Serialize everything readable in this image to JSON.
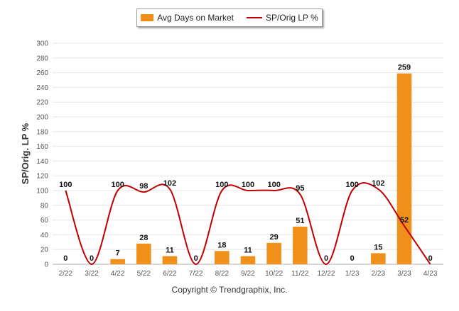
{
  "chart_data": {
    "type": "bar",
    "categories": [
      "2/22",
      "3/22",
      "4/22",
      "5/22",
      "6/22",
      "7/22",
      "8/22",
      "9/22",
      "10/22",
      "11/22",
      "12/22",
      "1/23",
      "2/23",
      "3/23",
      "4/23"
    ],
    "series": [
      {
        "name": "Avg Days on Market",
        "type": "bar",
        "color": "#f0901b",
        "values": [
          0,
          0,
          7,
          28,
          11,
          0,
          18,
          11,
          29,
          51,
          0,
          0,
          15,
          259,
          0
        ]
      },
      {
        "name": "SP/Orig LP %",
        "type": "line",
        "color": "#c00000",
        "values": [
          100,
          0,
          100,
          98,
          102,
          0,
          100,
          100,
          100,
          95,
          0,
          100,
          102,
          52,
          0
        ]
      }
    ],
    "bar_labels": [
      "0",
      "0",
      "7",
      "28",
      "11",
      "0",
      "18",
      "11",
      "29",
      "51",
      "0",
      "0",
      "15",
      "259",
      "0"
    ],
    "line_labels": [
      "100",
      "",
      "100",
      "98",
      "102",
      "",
      "100",
      "100",
      "100",
      "95",
      "",
      "100",
      "102",
      "52",
      ""
    ],
    "ylabel": "SP/Orig. LP %",
    "ylim": [
      0,
      300
    ],
    "yticks": [
      0,
      20,
      40,
      60,
      80,
      100,
      120,
      140,
      160,
      180,
      200,
      220,
      240,
      260,
      280,
      300
    ],
    "grid": true,
    "legend_position": "top"
  },
  "footer": {
    "copyright": "Copyright © Trendgraphix, Inc."
  }
}
